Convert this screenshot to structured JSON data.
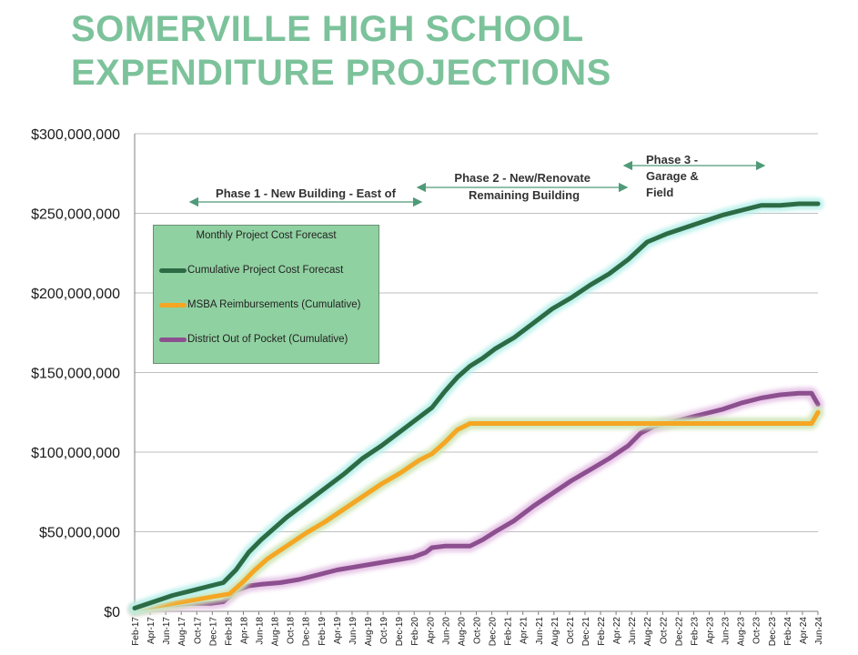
{
  "title_lines": [
    "SOMERVILLE HIGH SCHOOL",
    "EXPENDITURE PROJECTIONS"
  ],
  "legend": {
    "title": "Monthly Project Cost Forecast",
    "items": [
      {
        "label": "Cumulative Project Cost Forecast",
        "color": "#2d6b45"
      },
      {
        "label": "MSBA Reimbursements (Cumulative)",
        "color": "#f5a623"
      },
      {
        "label": "District Out of Pocket (Cumulative)",
        "color": "#8c4f8f"
      }
    ]
  },
  "phases": [
    {
      "label_lines": [
        "Phase 1 - New Building - East of"
      ]
    },
    {
      "label_lines": [
        "Phase 2 - New/Renovate",
        "Remaining Building"
      ]
    },
    {
      "label_lines": [
        "Phase 3 -",
        "Garage &",
        "Field"
      ]
    }
  ],
  "colors": {
    "grid": "#bfbfbf",
    "title": "#7cc29b",
    "arrow": "#4f9a78"
  },
  "chart_data": {
    "type": "line",
    "title": "SOMERVILLE HIGH SCHOOL EXPENDITURE PROJECTIONS",
    "xlabel": "",
    "ylabel": "",
    "ylim": [
      0,
      300000000
    ],
    "yticks": [
      0,
      50000000,
      100000000,
      150000000,
      200000000,
      250000000,
      300000000
    ],
    "ytick_labels": [
      "$0",
      "$50,000,000",
      "$100,000,000",
      "$150,000,000",
      "$200,000,000",
      "$250,000,000",
      "$300,000,000"
    ],
    "x_tick_labels": [
      "Feb-17",
      "Apr-17",
      "Jun-17",
      "Aug-17",
      "Oct-17",
      "Dec-17",
      "Feb-18",
      "Apr-18",
      "Jun-18",
      "Aug-18",
      "Oct-18",
      "Dec-18",
      "Feb-19",
      "Apr-19",
      "Jun-19",
      "Aug-19",
      "Oct-19",
      "Dec-19",
      "Feb-20",
      "Apr-20",
      "Jun-20",
      "Aug-20",
      "Oct-20",
      "Dec-20",
      "Feb-21",
      "Apr-21",
      "Jun-21",
      "Aug-21",
      "Oct-21",
      "Dec-21",
      "Feb-22",
      "Apr-22",
      "Jun-22",
      "Aug-22",
      "Oct-22",
      "Dec-22",
      "Feb-23",
      "Apr-23",
      "Jun-23",
      "Aug-23",
      "Oct-23",
      "Dec-23",
      "Feb-24",
      "Apr-24",
      "Jun-24"
    ],
    "grid": true,
    "legend_position": "top-left",
    "series": [
      {
        "name": "Cumulative Project Cost Forecast",
        "color": "#2d6b45",
        "points": [
          [
            0,
            2000000
          ],
          [
            3,
            6000000
          ],
          [
            6,
            10000000
          ],
          [
            9,
            13000000
          ],
          [
            12,
            16000000
          ],
          [
            14,
            18000000
          ],
          [
            16,
            26000000
          ],
          [
            18,
            37000000
          ],
          [
            20,
            45000000
          ],
          [
            22,
            52000000
          ],
          [
            24,
            59000000
          ],
          [
            27,
            68000000
          ],
          [
            30,
            77000000
          ],
          [
            33,
            86000000
          ],
          [
            36,
            96000000
          ],
          [
            39,
            104000000
          ],
          [
            42,
            113000000
          ],
          [
            45,
            122000000
          ],
          [
            47,
            128000000
          ],
          [
            49,
            138000000
          ],
          [
            51,
            147000000
          ],
          [
            53,
            154000000
          ],
          [
            55,
            159000000
          ],
          [
            57,
            165000000
          ],
          [
            60,
            172000000
          ],
          [
            63,
            181000000
          ],
          [
            66,
            190000000
          ],
          [
            69,
            197000000
          ],
          [
            72,
            205000000
          ],
          [
            75,
            212000000
          ],
          [
            78,
            221000000
          ],
          [
            81,
            232000000
          ],
          [
            84,
            237000000
          ],
          [
            87,
            241000000
          ],
          [
            90,
            245000000
          ],
          [
            93,
            249000000
          ],
          [
            96,
            252000000
          ],
          [
            99,
            255000000
          ],
          [
            102,
            255000000
          ],
          [
            105,
            256000000
          ],
          [
            108,
            256000000
          ]
        ]
      },
      {
        "name": "MSBA Reimbursements (Cumulative)",
        "color": "#f5a623",
        "points": [
          [
            0,
            1000000
          ],
          [
            3,
            3000000
          ],
          [
            6,
            5000000
          ],
          [
            9,
            7000000
          ],
          [
            12,
            9000000
          ],
          [
            15,
            11000000
          ],
          [
            17,
            18000000
          ],
          [
            19,
            26000000
          ],
          [
            21,
            33000000
          ],
          [
            24,
            41000000
          ],
          [
            27,
            49000000
          ],
          [
            30,
            56000000
          ],
          [
            33,
            64000000
          ],
          [
            36,
            72000000
          ],
          [
            39,
            80000000
          ],
          [
            42,
            87000000
          ],
          [
            45,
            95000000
          ],
          [
            47,
            99000000
          ],
          [
            49,
            106000000
          ],
          [
            51,
            114000000
          ],
          [
            53,
            118000000
          ],
          [
            60,
            118000000
          ],
          [
            70,
            118000000
          ],
          [
            80,
            118000000
          ],
          [
            90,
            118000000
          ],
          [
            100,
            118000000
          ],
          [
            107,
            118000000
          ],
          [
            108,
            125000000
          ]
        ]
      },
      {
        "name": "District Out of Pocket (Cumulative)",
        "color": "#8c4f8f",
        "points": [
          [
            0,
            1000000
          ],
          [
            3,
            3000000
          ],
          [
            6,
            4000000
          ],
          [
            9,
            5000000
          ],
          [
            12,
            5000000
          ],
          [
            14,
            6000000
          ],
          [
            16,
            13000000
          ],
          [
            18,
            16000000
          ],
          [
            20,
            17000000
          ],
          [
            23,
            18000000
          ],
          [
            26,
            20000000
          ],
          [
            29,
            23000000
          ],
          [
            32,
            26000000
          ],
          [
            35,
            28000000
          ],
          [
            38,
            30000000
          ],
          [
            41,
            32000000
          ],
          [
            44,
            34000000
          ],
          [
            46,
            37000000
          ],
          [
            47,
            40000000
          ],
          [
            49,
            41000000
          ],
          [
            51,
            41000000
          ],
          [
            53,
            41000000
          ],
          [
            55,
            45000000
          ],
          [
            57,
            50000000
          ],
          [
            60,
            57000000
          ],
          [
            63,
            66000000
          ],
          [
            66,
            74000000
          ],
          [
            69,
            82000000
          ],
          [
            72,
            89000000
          ],
          [
            75,
            96000000
          ],
          [
            78,
            104000000
          ],
          [
            80,
            112000000
          ],
          [
            82,
            116000000
          ],
          [
            84,
            118000000
          ],
          [
            87,
            121000000
          ],
          [
            90,
            124000000
          ],
          [
            93,
            127000000
          ],
          [
            96,
            131000000
          ],
          [
            99,
            134000000
          ],
          [
            102,
            136000000
          ],
          [
            105,
            137000000
          ],
          [
            107,
            137000000
          ],
          [
            108,
            130000000
          ]
        ]
      }
    ]
  }
}
